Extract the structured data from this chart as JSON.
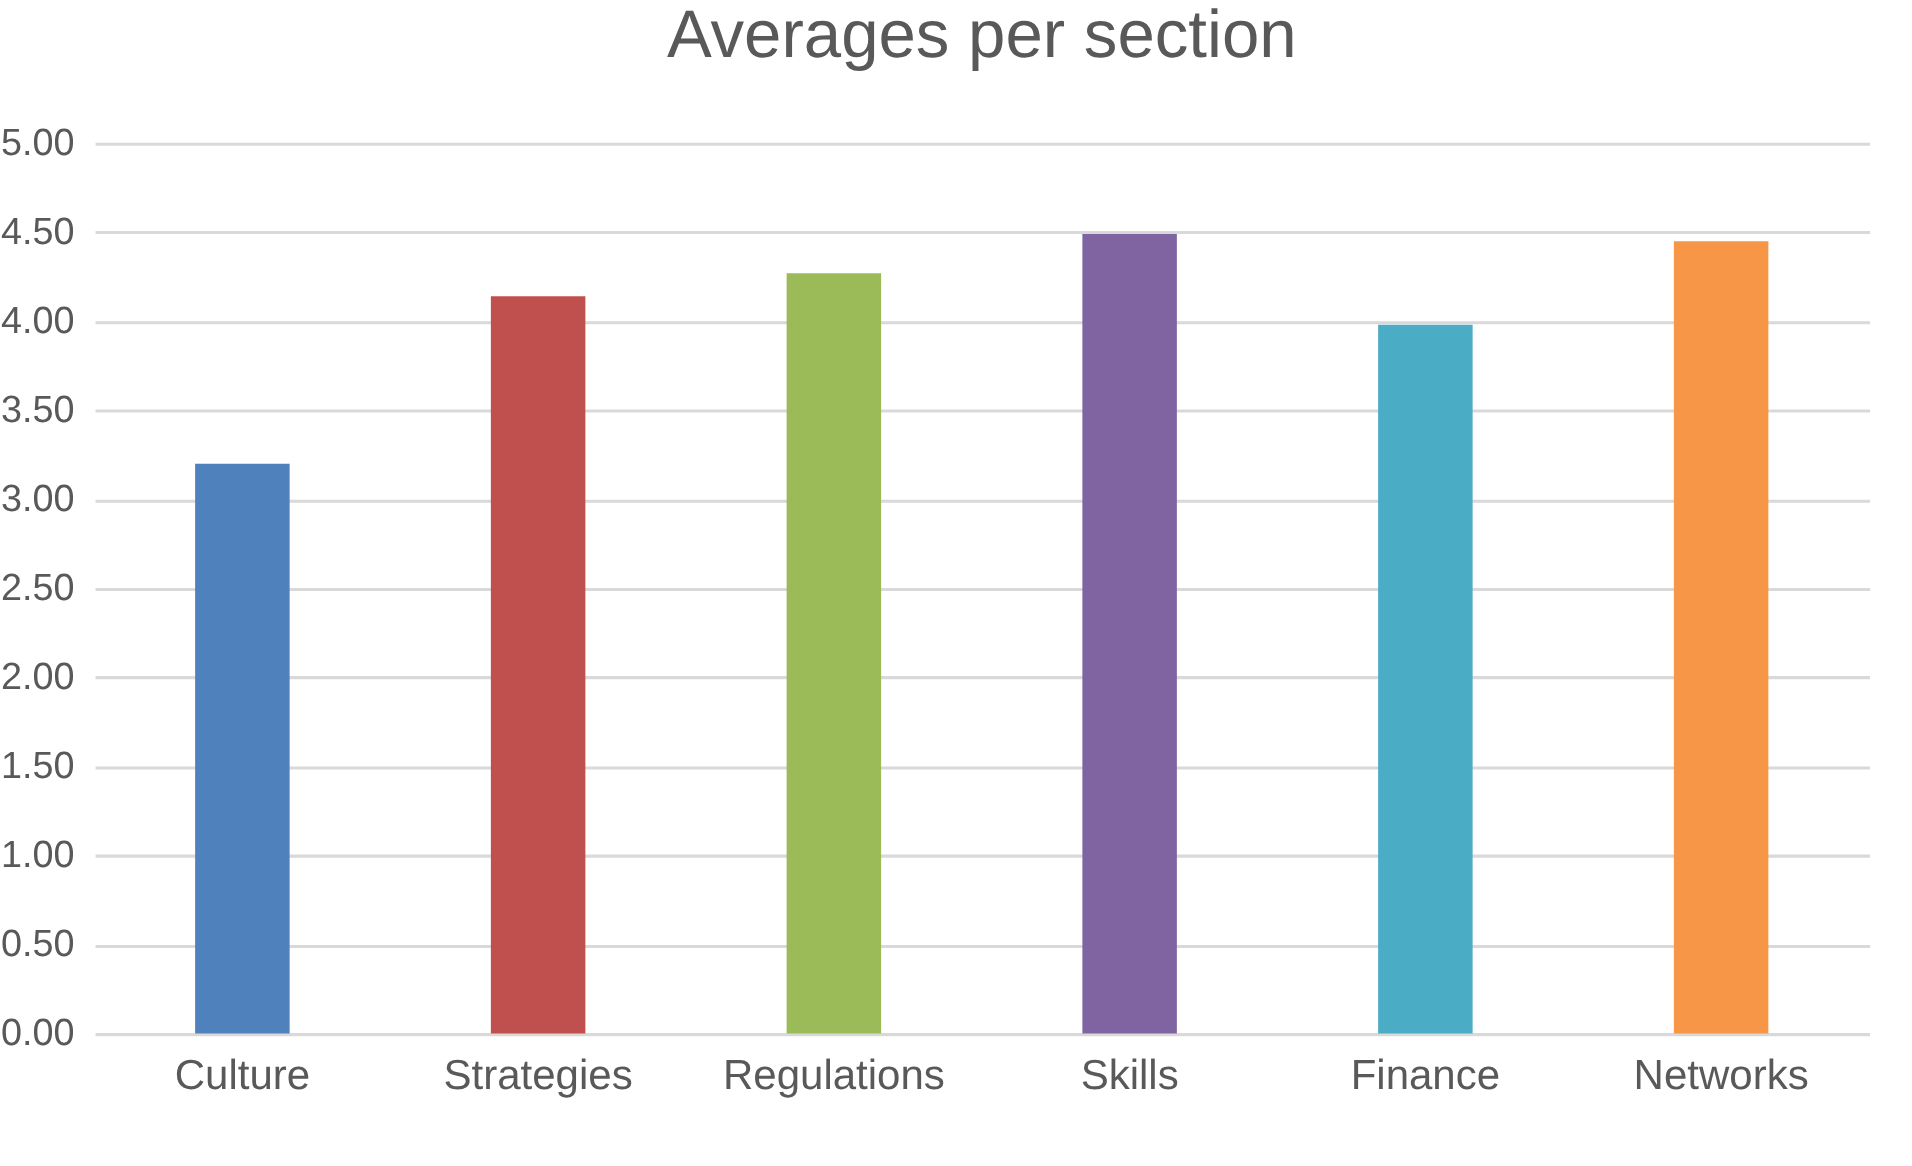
{
  "chart_data": {
    "type": "bar",
    "title": "Averages per section",
    "categories": [
      "Culture",
      "Strategies",
      "Regulations",
      "Skills",
      "Finance",
      "Networks"
    ],
    "values": [
      3.2,
      4.14,
      4.27,
      4.49,
      3.98,
      4.45
    ],
    "colors": [
      "#4f81bd",
      "#c0504d",
      "#9bbb59",
      "#8064a2",
      "#4bacc6",
      "#f79646"
    ],
    "ylim": [
      0,
      5
    ],
    "yticks": [
      {
        "value": 0,
        "label": "0.00"
      },
      {
        "value": 0.5,
        "label": "0.50"
      },
      {
        "value": 1,
        "label": "1.00"
      },
      {
        "value": 1.5,
        "label": "1.50"
      },
      {
        "value": 2,
        "label": "2.00"
      },
      {
        "value": 2.5,
        "label": "2.50"
      },
      {
        "value": 3,
        "label": "3.00"
      },
      {
        "value": 3.5,
        "label": "3.50"
      },
      {
        "value": 4,
        "label": "4.00"
      },
      {
        "value": 4.5,
        "label": "4.50"
      },
      {
        "value": 5,
        "label": "5.00"
      }
    ],
    "grid": "y"
  }
}
